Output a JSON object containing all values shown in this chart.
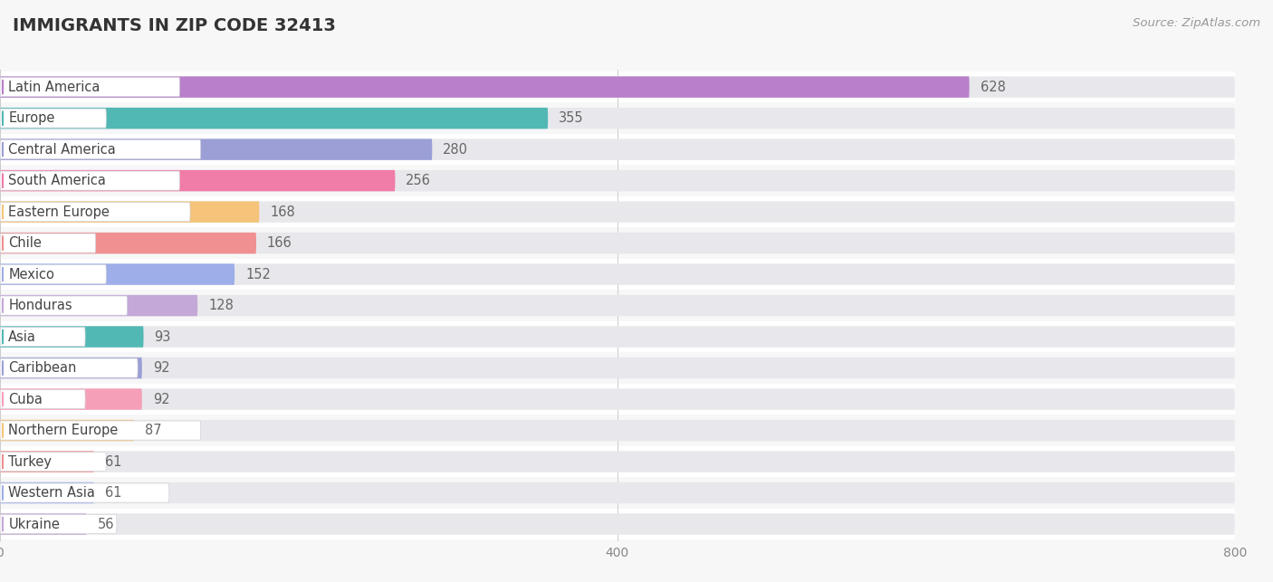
{
  "title": "IMMIGRANTS IN ZIP CODE 32413",
  "source": "Source: ZipAtlas.com",
  "categories": [
    "Latin America",
    "Europe",
    "Central America",
    "South America",
    "Eastern Europe",
    "Chile",
    "Mexico",
    "Honduras",
    "Asia",
    "Caribbean",
    "Cuba",
    "Northern Europe",
    "Turkey",
    "Western Asia",
    "Ukraine"
  ],
  "values": [
    628,
    355,
    280,
    256,
    168,
    166,
    152,
    128,
    93,
    92,
    92,
    87,
    61,
    61,
    56
  ],
  "bar_colors": [
    "#b97fcb",
    "#52b8b4",
    "#9b9fd6",
    "#f07ca8",
    "#f5c47a",
    "#f09090",
    "#9daee8",
    "#c4a8d8",
    "#52b8b4",
    "#9b9fd6",
    "#f5a0b8",
    "#f5c47a",
    "#f09090",
    "#9daee8",
    "#c4a8d8"
  ],
  "xlim_max": 800,
  "xticks": [
    0,
    400,
    800
  ],
  "background_color": "#f7f7f8",
  "bar_bg_color": "#e8e8ec",
  "row_bg_color": "#f0f0f3",
  "title_fontsize": 14,
  "label_fontsize": 10.5,
  "value_fontsize": 10.5,
  "source_fontsize": 9.5
}
